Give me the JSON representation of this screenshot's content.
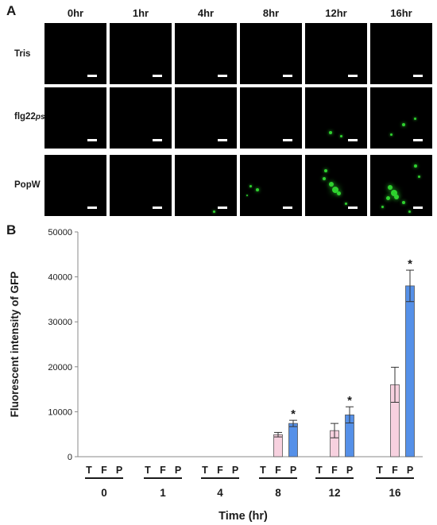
{
  "panel_a": {
    "letter": "A",
    "time_points": [
      "0hr",
      "1hr",
      "4hr",
      "8hr",
      "12hr",
      "16hr"
    ],
    "rows": [
      {
        "label": "Tris",
        "subscript": ""
      },
      {
        "label": "flg22",
        "subscript": "pst"
      },
      {
        "label": "PopW",
        "subscript": ""
      }
    ],
    "fluorescence_color": "#2fd12f"
  },
  "panel_b": {
    "letter": "B"
  },
  "chart_data": {
    "type": "bar",
    "categories": [
      "0",
      "1",
      "4",
      "8",
      "12",
      "16"
    ],
    "sub_categories": [
      "T",
      "F",
      "P"
    ],
    "series": [
      {
        "name": "T",
        "values": [
          0,
          0,
          0,
          0,
          0,
          0
        ],
        "errors": [
          0,
          0,
          0,
          0,
          0,
          0
        ],
        "color": "#ffffff"
      },
      {
        "name": "F",
        "values": [
          0,
          0,
          0,
          4900,
          5800,
          16000
        ],
        "errors": [
          0,
          0,
          0,
          500,
          1600,
          3900
        ],
        "color": "#f7d1df"
      },
      {
        "name": "P",
        "values": [
          0,
          0,
          0,
          7400,
          9300,
          38000
        ],
        "errors": [
          0,
          0,
          0,
          700,
          1800,
          3500
        ],
        "color": "#5590e8"
      }
    ],
    "significance": [
      "",
      "",
      "",
      "*",
      "*",
      "*"
    ],
    "xlabel": "Time (hr)",
    "ylabel": "Fluorescent intensity of GFP",
    "ylim": [
      0,
      50000
    ],
    "yticks": [
      "0",
      "10000",
      "20000",
      "30000",
      "40000",
      "50000"
    ]
  }
}
